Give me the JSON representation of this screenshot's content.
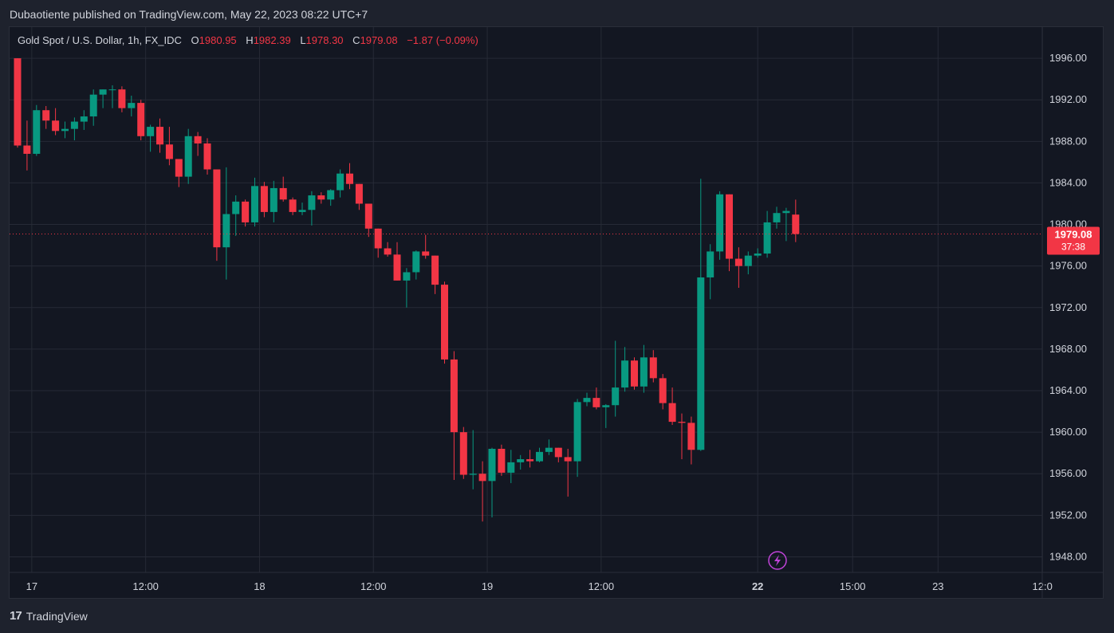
{
  "header": {
    "publisher": "Dubaotiente published on TradingView.com, May 22, 2023 08:22 UTC+7"
  },
  "legend": {
    "symbol": "Gold Spot / U.S. Dollar, 1h, FX_IDC",
    "o_label": "O",
    "o_value": "1980.95",
    "h_label": "H",
    "h_value": "1982.39",
    "l_label": "L",
    "l_value": "1978.30",
    "c_label": "C",
    "c_value": "1979.08",
    "change": "−1.87 (−0.09%)"
  },
  "price_tag": {
    "price": "1979.08",
    "countdown": "37:38"
  },
  "footer": {
    "logo": "17",
    "brand": "TradingView"
  },
  "colors": {
    "up": "#089981",
    "down": "#f23645",
    "background": "#131722",
    "grid": "#262a36",
    "text": "#d1d4dc",
    "lightning": "#c043d9"
  },
  "icons": {
    "lightning": "lightning-icon",
    "logo": "tradingview-logo-icon"
  },
  "chart_data": {
    "type": "candlestick",
    "ylim": [
      1946.5,
      1999
    ],
    "y_ticks": [
      "1996.00",
      "1992.00",
      "1988.00",
      "1984.00",
      "1980.00",
      "1976.00",
      "1972.00",
      "1968.00",
      "1964.00",
      "1960.00",
      "1956.00",
      "1952.00",
      "1948.00"
    ],
    "x_ticks": [
      {
        "label": "17",
        "index": 1.5,
        "bold": false
      },
      {
        "label": "12:00",
        "index": 13.5,
        "bold": false
      },
      {
        "label": "18",
        "index": 25.5,
        "bold": false
      },
      {
        "label": "12:00",
        "index": 37.5,
        "bold": false
      },
      {
        "label": "19",
        "index": 49.5,
        "bold": false
      },
      {
        "label": "12:00",
        "index": 61.5,
        "bold": false
      },
      {
        "label": "22",
        "index": 78,
        "bold": true
      },
      {
        "label": "15:00",
        "index": 88,
        "bold": false
      },
      {
        "label": "23",
        "index": 97,
        "bold": false
      },
      {
        "label": "12:0",
        "index": 108,
        "bold": false
      }
    ],
    "last_price": 1979.08,
    "candles": [
      {
        "o": 1996.0,
        "h": 1996.0,
        "l": 1987.4,
        "c": 1987.6
      },
      {
        "o": 1987.6,
        "h": 1990.0,
        "l": 1985.2,
        "c": 1986.8
      },
      {
        "o": 1986.8,
        "h": 1991.5,
        "l": 1986.6,
        "c": 1991.0
      },
      {
        "o": 1991.0,
        "h": 1991.4,
        "l": 1989.2,
        "c": 1990.0
      },
      {
        "o": 1990.0,
        "h": 1991.2,
        "l": 1988.6,
        "c": 1989.0
      },
      {
        "o": 1989.0,
        "h": 1989.9,
        "l": 1988.3,
        "c": 1989.2
      },
      {
        "o": 1989.2,
        "h": 1990.3,
        "l": 1988.1,
        "c": 1989.9
      },
      {
        "o": 1989.9,
        "h": 1991.0,
        "l": 1989.1,
        "c": 1990.4
      },
      {
        "o": 1990.4,
        "h": 1993.0,
        "l": 1989.5,
        "c": 1992.5
      },
      {
        "o": 1992.5,
        "h": 1993.0,
        "l": 1991.2,
        "c": 1993.0
      },
      {
        "o": 1993.0,
        "h": 1993.4,
        "l": 1991.2,
        "c": 1993.0
      },
      {
        "o": 1993.0,
        "h": 1993.3,
        "l": 1990.8,
        "c": 1991.2
      },
      {
        "o": 1991.2,
        "h": 1992.4,
        "l": 1990.4,
        "c": 1991.7
      },
      {
        "o": 1991.7,
        "h": 1992.0,
        "l": 1988.1,
        "c": 1988.5
      },
      {
        "o": 1988.5,
        "h": 1989.6,
        "l": 1987.0,
        "c": 1989.4
      },
      {
        "o": 1989.4,
        "h": 1990.2,
        "l": 1986.9,
        "c": 1987.7
      },
      {
        "o": 1987.7,
        "h": 1989.4,
        "l": 1985.7,
        "c": 1986.3
      },
      {
        "o": 1986.3,
        "h": 1986.3,
        "l": 1983.6,
        "c": 1984.6
      },
      {
        "o": 1984.6,
        "h": 1989.2,
        "l": 1983.9,
        "c": 1988.5
      },
      {
        "o": 1988.5,
        "h": 1988.9,
        "l": 1986.6,
        "c": 1987.8
      },
      {
        "o": 1987.8,
        "h": 1988.3,
        "l": 1984.8,
        "c": 1985.3
      },
      {
        "o": 1985.3,
        "h": 1985.3,
        "l": 1976.5,
        "c": 1977.8
      },
      {
        "o": 1977.8,
        "h": 1985.5,
        "l": 1974.7,
        "c": 1981.0
      },
      {
        "o": 1981.0,
        "h": 1982.8,
        "l": 1978.9,
        "c": 1982.2
      },
      {
        "o": 1982.2,
        "h": 1982.4,
        "l": 1979.8,
        "c": 1980.2
      },
      {
        "o": 1980.2,
        "h": 1984.5,
        "l": 1979.8,
        "c": 1983.7
      },
      {
        "o": 1983.7,
        "h": 1984.1,
        "l": 1980.7,
        "c": 1981.2
      },
      {
        "o": 1981.2,
        "h": 1984.2,
        "l": 1980.2,
        "c": 1983.5
      },
      {
        "o": 1983.5,
        "h": 1984.6,
        "l": 1982.2,
        "c": 1982.4
      },
      {
        "o": 1982.4,
        "h": 1982.6,
        "l": 1980.9,
        "c": 1981.2
      },
      {
        "o": 1981.2,
        "h": 1982.1,
        "l": 1980.9,
        "c": 1981.4
      },
      {
        "o": 1981.4,
        "h": 1983.2,
        "l": 1979.9,
        "c": 1982.8
      },
      {
        "o": 1982.8,
        "h": 1983.1,
        "l": 1982.0,
        "c": 1982.4
      },
      {
        "o": 1982.4,
        "h": 1983.4,
        "l": 1981.8,
        "c": 1983.3
      },
      {
        "o": 1983.3,
        "h": 1985.3,
        "l": 1982.6,
        "c": 1984.9
      },
      {
        "o": 1984.9,
        "h": 1985.9,
        "l": 1983.4,
        "c": 1983.9
      },
      {
        "o": 1983.9,
        "h": 1983.9,
        "l": 1981.4,
        "c": 1982.0
      },
      {
        "o": 1982.0,
        "h": 1982.0,
        "l": 1978.8,
        "c": 1979.6
      },
      {
        "o": 1979.6,
        "h": 1979.6,
        "l": 1976.8,
        "c": 1977.7
      },
      {
        "o": 1977.7,
        "h": 1978.3,
        "l": 1976.9,
        "c": 1977.1
      },
      {
        "o": 1977.1,
        "h": 1978.3,
        "l": 1974.6,
        "c": 1974.6
      },
      {
        "o": 1974.6,
        "h": 1975.8,
        "l": 1972.0,
        "c": 1975.4
      },
      {
        "o": 1975.4,
        "h": 1977.5,
        "l": 1974.7,
        "c": 1977.4
      },
      {
        "o": 1977.4,
        "h": 1979.0,
        "l": 1976.7,
        "c": 1977.0
      },
      {
        "o": 1977.0,
        "h": 1977.0,
        "l": 1973.3,
        "c": 1974.2
      },
      {
        "o": 1974.2,
        "h": 1974.5,
        "l": 1966.6,
        "c": 1967.0
      },
      {
        "o": 1967.0,
        "h": 1967.8,
        "l": 1955.4,
        "c": 1960.0
      },
      {
        "o": 1960.0,
        "h": 1960.5,
        "l": 1955.5,
        "c": 1955.9
      },
      {
        "o": 1955.9,
        "h": 1960.2,
        "l": 1954.5,
        "c": 1956.0
      },
      {
        "o": 1956.0,
        "h": 1957.2,
        "l": 1951.4,
        "c": 1955.3
      },
      {
        "o": 1955.3,
        "h": 1958.5,
        "l": 1951.8,
        "c": 1958.4
      },
      {
        "o": 1958.4,
        "h": 1958.8,
        "l": 1955.8,
        "c": 1956.1
      },
      {
        "o": 1956.1,
        "h": 1958.3,
        "l": 1955.1,
        "c": 1957.1
      },
      {
        "o": 1957.1,
        "h": 1957.8,
        "l": 1956.4,
        "c": 1957.4
      },
      {
        "o": 1957.4,
        "h": 1958.3,
        "l": 1956.6,
        "c": 1957.2
      },
      {
        "o": 1957.2,
        "h": 1958.5,
        "l": 1957.1,
        "c": 1958.1
      },
      {
        "o": 1958.1,
        "h": 1959.3,
        "l": 1957.8,
        "c": 1958.5
      },
      {
        "o": 1958.5,
        "h": 1958.5,
        "l": 1957.1,
        "c": 1957.6
      },
      {
        "o": 1957.6,
        "h": 1958.4,
        "l": 1953.8,
        "c": 1957.2
      },
      {
        "o": 1957.2,
        "h": 1963.2,
        "l": 1955.7,
        "c": 1962.9
      },
      {
        "o": 1962.9,
        "h": 1963.8,
        "l": 1962.5,
        "c": 1963.3
      },
      {
        "o": 1963.3,
        "h": 1964.3,
        "l": 1962.2,
        "c": 1962.4
      },
      {
        "o": 1962.4,
        "h": 1962.7,
        "l": 1960.4,
        "c": 1962.6
      },
      {
        "o": 1962.6,
        "h": 1968.8,
        "l": 1961.5,
        "c": 1964.3
      },
      {
        "o": 1964.3,
        "h": 1968.2,
        "l": 1963.9,
        "c": 1966.9
      },
      {
        "o": 1966.9,
        "h": 1967.2,
        "l": 1964.1,
        "c": 1964.4
      },
      {
        "o": 1964.4,
        "h": 1968.4,
        "l": 1963.8,
        "c": 1967.2
      },
      {
        "o": 1967.2,
        "h": 1967.9,
        "l": 1964.8,
        "c": 1965.2
      },
      {
        "o": 1965.2,
        "h": 1965.6,
        "l": 1962.2,
        "c": 1962.8
      },
      {
        "o": 1962.8,
        "h": 1964.3,
        "l": 1960.7,
        "c": 1961.0
      },
      {
        "o": 1961.0,
        "h": 1961.8,
        "l": 1957.4,
        "c": 1960.9
      },
      {
        "o": 1960.9,
        "h": 1961.5,
        "l": 1956.9,
        "c": 1958.3
      },
      {
        "o": 1958.3,
        "h": 1984.4,
        "l": 1958.2,
        "c": 1974.9
      },
      {
        "o": 1974.9,
        "h": 1978.1,
        "l": 1972.8,
        "c": 1977.4
      },
      {
        "o": 1977.4,
        "h": 1983.2,
        "l": 1976.6,
        "c": 1982.9
      },
      {
        "o": 1982.9,
        "h": 1982.9,
        "l": 1975.5,
        "c": 1976.7
      },
      {
        "o": 1976.7,
        "h": 1977.8,
        "l": 1973.9,
        "c": 1976.0
      },
      {
        "o": 1976.0,
        "h": 1977.4,
        "l": 1975.2,
        "c": 1977.0
      },
      {
        "o": 1977.0,
        "h": 1977.7,
        "l": 1976.8,
        "c": 1977.2
      },
      {
        "o": 1977.2,
        "h": 1981.3,
        "l": 1976.8,
        "c": 1980.2
      },
      {
        "o": 1980.2,
        "h": 1981.7,
        "l": 1979.6,
        "c": 1981.1
      },
      {
        "o": 1981.1,
        "h": 1981.6,
        "l": 1978.4,
        "c": 1981.3
      },
      {
        "o": 1980.95,
        "h": 1982.39,
        "l": 1978.3,
        "c": 1979.08
      }
    ]
  }
}
